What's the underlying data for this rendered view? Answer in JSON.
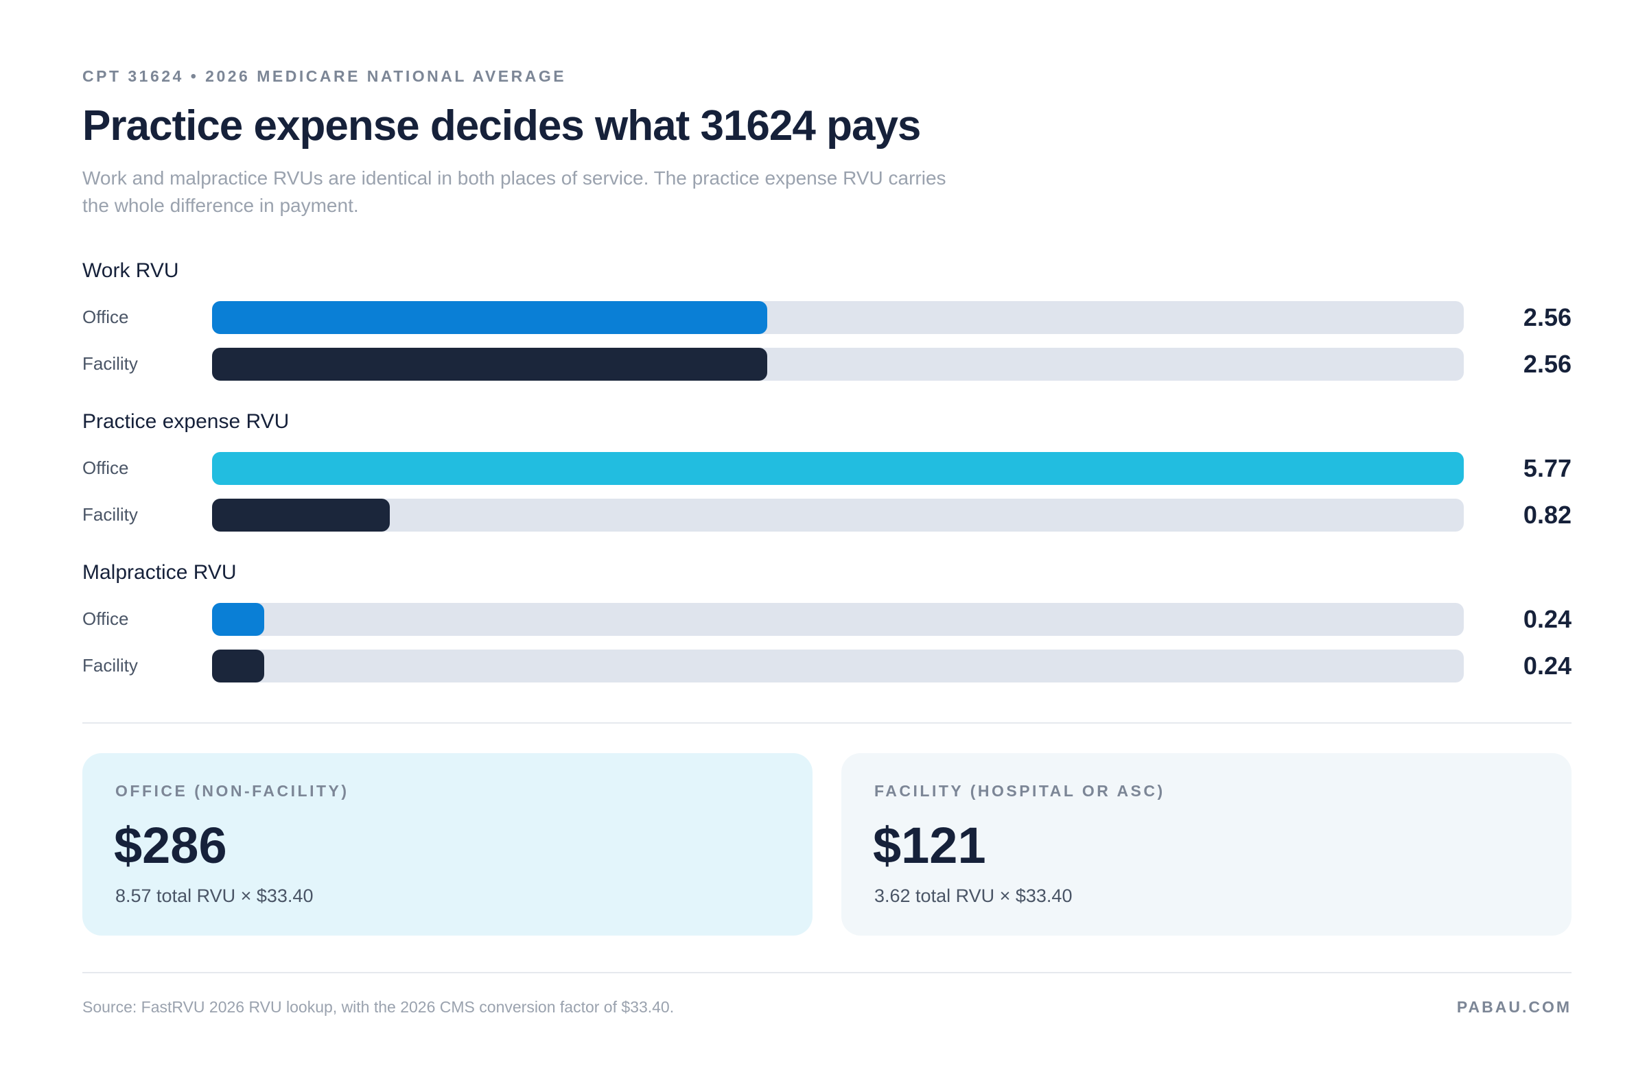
{
  "eyebrow": "CPT 31624 • 2026 MEDICARE NATIONAL AVERAGE",
  "chart_data": {
    "type": "bar",
    "title": "Practice expense decides what 31624 pays",
    "subtitle": "Work and malpractice RVUs are identical in both places of service. The practice expense RVU carries the whole difference in payment.",
    "groups": [
      {
        "name": "Work RVU",
        "rows": [
          {
            "label": "Office",
            "value": 2.56,
            "color": "#0a7fd6"
          },
          {
            "label": "Facility",
            "value": 2.56,
            "color": "#1b263b"
          }
        ]
      },
      {
        "name": "Practice expense RVU",
        "rows": [
          {
            "label": "Office",
            "value": 5.77,
            "color": "#22bde0"
          },
          {
            "label": "Facility",
            "value": 0.82,
            "color": "#1b263b"
          }
        ]
      },
      {
        "name": "Malpractice RVU",
        "rows": [
          {
            "label": "Office",
            "value": 0.24,
            "color": "#0a7fd6"
          },
          {
            "label": "Facility",
            "value": 0.24,
            "color": "#1b263b"
          }
        ]
      }
    ]
  },
  "cards": [
    {
      "label": "OFFICE (NON-FACILITY)",
      "amount": "$286",
      "detail": "8.57 total RVU × $33.40",
      "color": "#e3f5fb"
    },
    {
      "label": "FACILITY (HOSPITAL OR ASC)",
      "amount": "$121",
      "detail": "3.62 total RVU × $33.40",
      "color": "#f2f7fa"
    }
  ],
  "footer": {
    "source": "Source: FastRVU 2026 RVU lookup, with the 2026 CMS conversion factor of $33.40.",
    "brand": "PABAU.COM"
  }
}
